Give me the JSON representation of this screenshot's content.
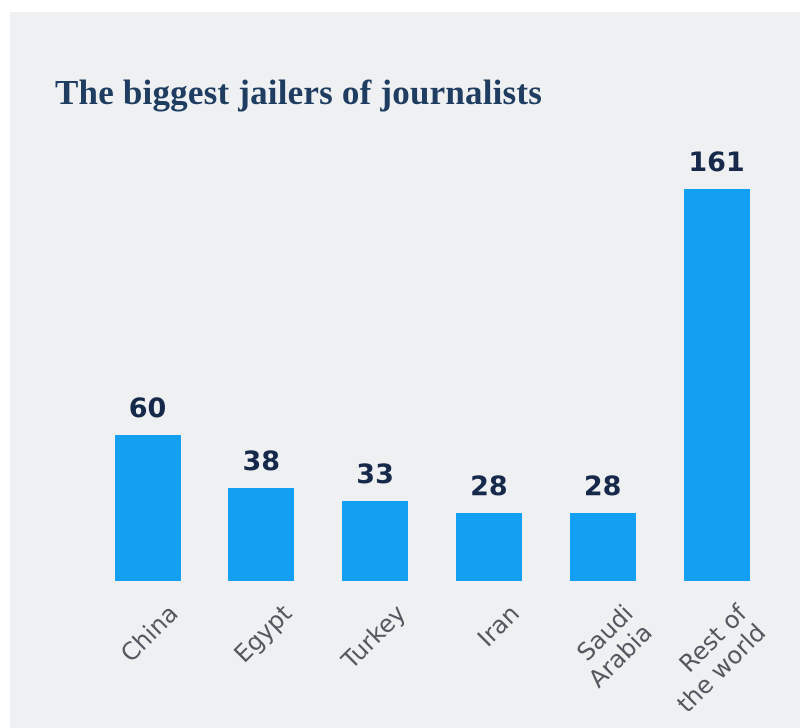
{
  "chart_data": {
    "type": "bar",
    "title": "The biggest jailers of journalists",
    "categories": [
      "China",
      "Egypt",
      "Turkey",
      "Iran",
      "Saudi Arabia",
      "Rest of the world"
    ],
    "category_lines": [
      [
        "China"
      ],
      [
        "Egypt"
      ],
      [
        "Turkey"
      ],
      [
        "Iran"
      ],
      [
        "Saudi",
        "Arabia"
      ],
      [
        "Rest of",
        "the world"
      ]
    ],
    "values": [
      60,
      38,
      33,
      28,
      28,
      161
    ],
    "value_labels": [
      "60",
      "38",
      "33",
      "28",
      "28",
      "161"
    ],
    "xlabel": "",
    "ylabel": "",
    "ylim": [
      0,
      161
    ],
    "grid": false,
    "legend": false,
    "category_label_rotation_deg": -45
  },
  "colors": {
    "bar": "#14a0f2",
    "title": "#1e3d60",
    "value_label": "#16294a",
    "category_label": "#54585f",
    "panel_background": "#eef0f2",
    "page_background": "#ffffff"
  }
}
